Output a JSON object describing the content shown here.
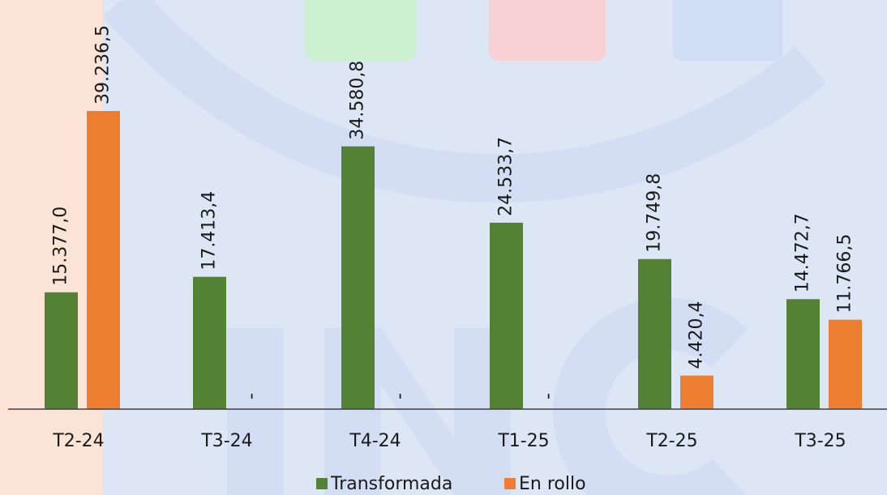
{
  "chart_data": {
    "type": "bar",
    "categories": [
      "T2-24",
      "T3-24",
      "T4-24",
      "T1-25",
      "T2-25",
      "T3-25"
    ],
    "series": [
      {
        "name": "Transformada",
        "color": "#548235",
        "values": [
          15377.0,
          17413.4,
          34580.8,
          24533.7,
          19749.8,
          14472.7
        ],
        "value_labels": [
          "15.377,0",
          "17.413,4",
          "34.580,8",
          "24.533,7",
          "19.749,8",
          "14.472,7"
        ]
      },
      {
        "name": "En rollo",
        "color": "#ed7d31",
        "values": [
          39236.5,
          null,
          null,
          null,
          4420.4,
          11766.5
        ],
        "value_labels": [
          "39.236,5",
          "-",
          "-",
          "-",
          "4.420,4",
          "11.766,5"
        ]
      }
    ],
    "legend": "bottom"
  }
}
